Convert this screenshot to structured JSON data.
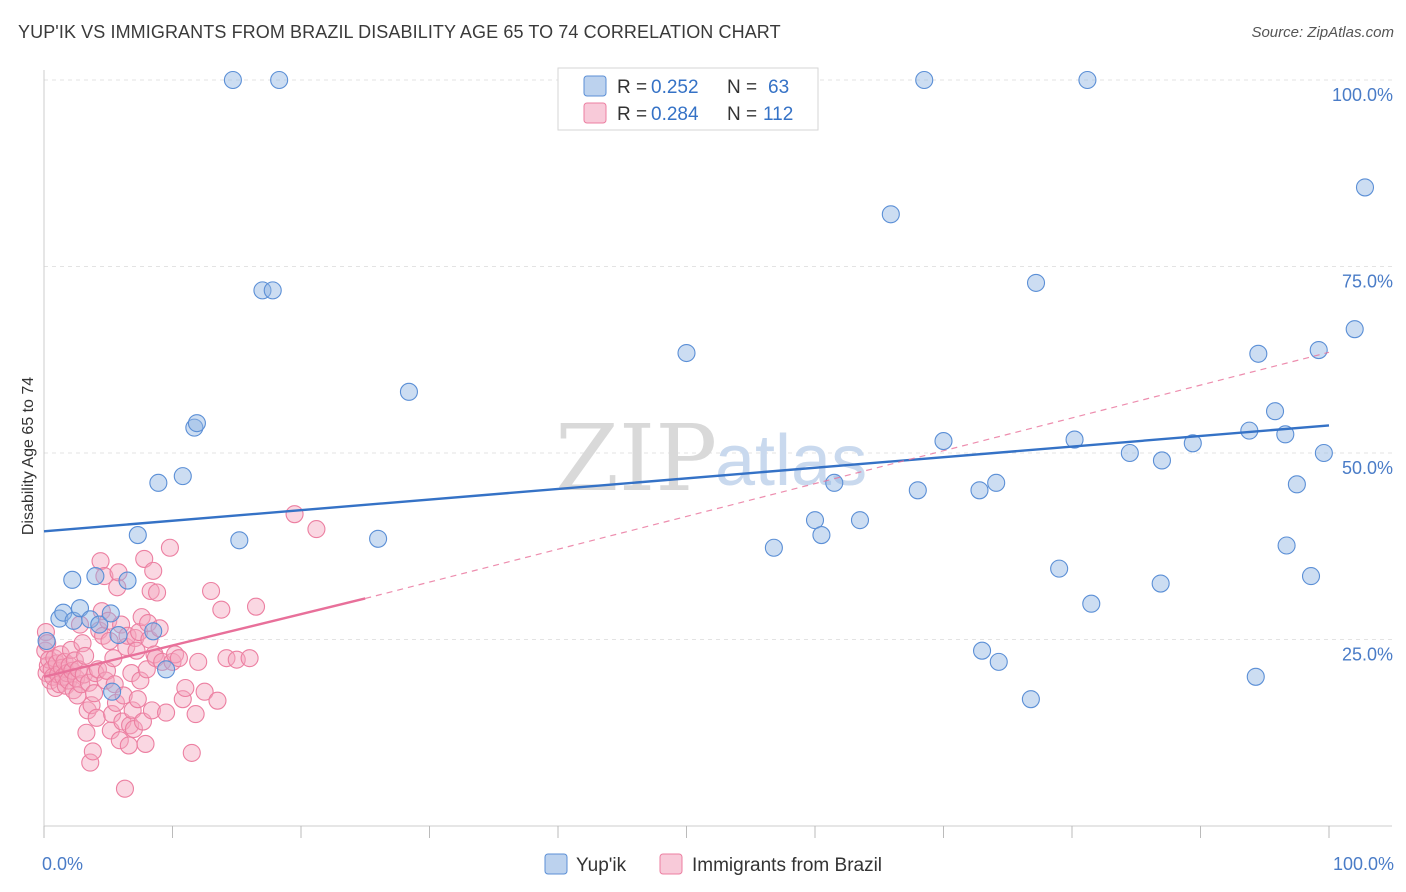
{
  "title": "YUP'IK VS IMMIGRANTS FROM BRAZIL DISABILITY AGE 65 TO 74 CORRELATION CHART",
  "source": "Source: ZipAtlas.com",
  "watermark": {
    "zip": "ZIP",
    "atlas": "atlas"
  },
  "chart_data": {
    "type": "scatter",
    "title": "YUP'IK VS IMMIGRANTS FROM BRAZIL DISABILITY AGE 65 TO 74 CORRELATION CHART",
    "xlabel": "",
    "ylabel": "Disability Age 65 to 74",
    "xlim": [
      0,
      100
    ],
    "ylim": [
      0,
      102
    ],
    "x_tick_labels": {
      "left": "0.0%",
      "right": "100.0%"
    },
    "y_ticks": [
      {
        "value": 25,
        "label": "25.0%"
      },
      {
        "value": 50,
        "label": "50.0%"
      },
      {
        "value": 75,
        "label": "75.0%"
      },
      {
        "value": 100,
        "label": "100.0%"
      }
    ],
    "grid": true,
    "legend_position": "top-center",
    "legend": [
      {
        "r_label": "R =",
        "r_value": "0.252",
        "n_label": "N =",
        "n_value": "63",
        "color": "#8fb4e3"
      },
      {
        "r_label": "R =",
        "r_value": "0.284",
        "n_label": "N =",
        "n_value": "112",
        "color": "#f4a7bf"
      }
    ],
    "series": [
      {
        "name": "Yup'ik",
        "color": "#8fb4e3",
        "stroke": "#5b8fd6",
        "trend": {
          "x0": 0,
          "y0": 39.5,
          "x1": 100,
          "y1": 53.7,
          "color": "#3572c6"
        },
        "points": [
          [
            1.2,
            27.8
          ],
          [
            1.5,
            28.6
          ],
          [
            2.2,
            33.0
          ],
          [
            2.3,
            27.5
          ],
          [
            2.8,
            29.2
          ],
          [
            3.6,
            27.7
          ],
          [
            4.0,
            33.5
          ],
          [
            4.3,
            27.0
          ],
          [
            5.2,
            28.5
          ],
          [
            5.3,
            18.0
          ],
          [
            5.8,
            25.6
          ],
          [
            6.5,
            32.9
          ],
          [
            7.3,
            39.0
          ],
          [
            8.5,
            26.1
          ],
          [
            8.9,
            46.0
          ],
          [
            9.5,
            21.0
          ],
          [
            10.8,
            46.9
          ],
          [
            11.7,
            53.4
          ],
          [
            11.9,
            54.0
          ],
          [
            14.7,
            100.0
          ],
          [
            15.2,
            38.3
          ],
          [
            17.0,
            71.8
          ],
          [
            17.8,
            71.8
          ],
          [
            18.3,
            100.0
          ],
          [
            26.0,
            38.5
          ],
          [
            28.4,
            58.2
          ],
          [
            50.0,
            63.4
          ],
          [
            56.8,
            37.3
          ],
          [
            60.0,
            41.0
          ],
          [
            60.5,
            39.0
          ],
          [
            61.5,
            46.0
          ],
          [
            63.5,
            41.0
          ],
          [
            65.9,
            82.0
          ],
          [
            68.0,
            45.0
          ],
          [
            68.5,
            100.0
          ],
          [
            70.0,
            51.6
          ],
          [
            72.8,
            45.0
          ],
          [
            73.0,
            23.5
          ],
          [
            74.1,
            46.0
          ],
          [
            74.3,
            22.0
          ],
          [
            76.8,
            17.0
          ],
          [
            77.2,
            72.8
          ],
          [
            79.0,
            34.5
          ],
          [
            80.2,
            51.8
          ],
          [
            81.2,
            100.0
          ],
          [
            81.5,
            29.8
          ],
          [
            84.5,
            50.0
          ],
          [
            86.9,
            32.5
          ],
          [
            87.0,
            49.0
          ],
          [
            89.4,
            51.3
          ],
          [
            93.8,
            53.0
          ],
          [
            94.3,
            20.0
          ],
          [
            94.5,
            63.3
          ],
          [
            95.8,
            55.6
          ],
          [
            96.6,
            52.5
          ],
          [
            96.7,
            37.6
          ],
          [
            97.5,
            45.8
          ],
          [
            98.6,
            33.5
          ],
          [
            99.2,
            63.8
          ],
          [
            99.6,
            50.0
          ],
          [
            102.0,
            66.6
          ],
          [
            102.8,
            85.6
          ],
          [
            0.2,
            24.8
          ]
        ]
      },
      {
        "name": "Immigrants from Brazil",
        "color": "#f4a7bf",
        "stroke": "#ec7fa1",
        "trend_solid": {
          "x0": 0,
          "y0": 20.0,
          "x1": 25,
          "y1": 30.5,
          "color": "#e8709a"
        },
        "trend_dashed": {
          "x0": 25,
          "y0": 30.5,
          "x1": 100,
          "y1": 63.5,
          "color": "#e8709a"
        },
        "points": [
          [
            0.1,
            23.5
          ],
          [
            0.2,
            20.5
          ],
          [
            0.3,
            21.5
          ],
          [
            0.4,
            22.3
          ],
          [
            0.5,
            19.5
          ],
          [
            0.6,
            21.0
          ],
          [
            0.7,
            20.0
          ],
          [
            0.8,
            22.5
          ],
          [
            0.9,
            18.5
          ],
          [
            1.0,
            21.8
          ],
          [
            1.1,
            20.3
          ],
          [
            1.2,
            19.0
          ],
          [
            1.3,
            23.0
          ],
          [
            1.4,
            21.2
          ],
          [
            1.5,
            20.0
          ],
          [
            1.6,
            22.0
          ],
          [
            1.7,
            18.8
          ],
          [
            1.8,
            20.5
          ],
          [
            1.9,
            19.5
          ],
          [
            2.0,
            21.5
          ],
          [
            2.1,
            23.6
          ],
          [
            2.2,
            20.8
          ],
          [
            2.3,
            18.2
          ],
          [
            2.4,
            22.2
          ],
          [
            2.5,
            19.8
          ],
          [
            2.6,
            17.5
          ],
          [
            2.7,
            21.0
          ],
          [
            2.8,
            27.0
          ],
          [
            2.9,
            19.0
          ],
          [
            3.0,
            24.5
          ],
          [
            3.1,
            20.3
          ],
          [
            3.2,
            22.8
          ],
          [
            3.3,
            12.5
          ],
          [
            3.4,
            15.5
          ],
          [
            3.5,
            19.2
          ],
          [
            3.6,
            8.5
          ],
          [
            3.7,
            16.2
          ],
          [
            3.8,
            10.0
          ],
          [
            3.9,
            17.8
          ],
          [
            4.0,
            20.5
          ],
          [
            4.1,
            14.5
          ],
          [
            4.2,
            21.0
          ],
          [
            4.3,
            26.2
          ],
          [
            4.4,
            35.5
          ],
          [
            4.5,
            28.8
          ],
          [
            4.6,
            25.5
          ],
          [
            4.7,
            33.5
          ],
          [
            4.8,
            19.5
          ],
          [
            4.9,
            20.8
          ],
          [
            5.0,
            27.5
          ],
          [
            5.1,
            24.8
          ],
          [
            5.2,
            12.8
          ],
          [
            5.3,
            15.0
          ],
          [
            5.4,
            22.5
          ],
          [
            5.5,
            19.0
          ],
          [
            5.6,
            16.5
          ],
          [
            5.7,
            32.0
          ],
          [
            5.8,
            34.0
          ],
          [
            5.9,
            11.5
          ],
          [
            6.0,
            27.0
          ],
          [
            6.1,
            14.0
          ],
          [
            6.2,
            17.5
          ],
          [
            6.3,
            5.0
          ],
          [
            6.4,
            24.0
          ],
          [
            6.5,
            25.5
          ],
          [
            6.6,
            10.8
          ],
          [
            6.7,
            13.5
          ],
          [
            6.8,
            20.5
          ],
          [
            6.9,
            15.5
          ],
          [
            7.0,
            13.0
          ],
          [
            7.1,
            25.2
          ],
          [
            7.2,
            23.5
          ],
          [
            7.3,
            17.0
          ],
          [
            7.4,
            26.0
          ],
          [
            7.5,
            19.5
          ],
          [
            7.6,
            28.0
          ],
          [
            7.7,
            14.0
          ],
          [
            7.8,
            35.8
          ],
          [
            7.9,
            11.0
          ],
          [
            8.0,
            21.0
          ],
          [
            8.1,
            27.2
          ],
          [
            8.2,
            25.0
          ],
          [
            8.3,
            31.5
          ],
          [
            8.4,
            15.5
          ],
          [
            8.5,
            34.2
          ],
          [
            8.6,
            23.0
          ],
          [
            8.7,
            22.5
          ],
          [
            8.8,
            31.3
          ],
          [
            9.0,
            26.5
          ],
          [
            9.2,
            22.0
          ],
          [
            9.5,
            15.2
          ],
          [
            9.8,
            37.3
          ],
          [
            10.0,
            22.0
          ],
          [
            10.2,
            23.0
          ],
          [
            10.5,
            22.5
          ],
          [
            10.8,
            17.0
          ],
          [
            11.0,
            18.5
          ],
          [
            11.5,
            9.8
          ],
          [
            11.8,
            15.0
          ],
          [
            12.0,
            22.0
          ],
          [
            12.5,
            18.0
          ],
          [
            13.0,
            31.5
          ],
          [
            13.5,
            16.8
          ],
          [
            13.8,
            29.0
          ],
          [
            14.2,
            22.5
          ],
          [
            15.0,
            22.3
          ],
          [
            16.0,
            22.5
          ],
          [
            16.5,
            29.4
          ],
          [
            19.5,
            41.8
          ],
          [
            21.2,
            39.8
          ],
          [
            0.15,
            26.0
          ],
          [
            0.25,
            24.5
          ]
        ]
      }
    ]
  },
  "bottom_legend": {
    "series1": "Yup'ik",
    "series2": "Immigrants from Brazil"
  }
}
